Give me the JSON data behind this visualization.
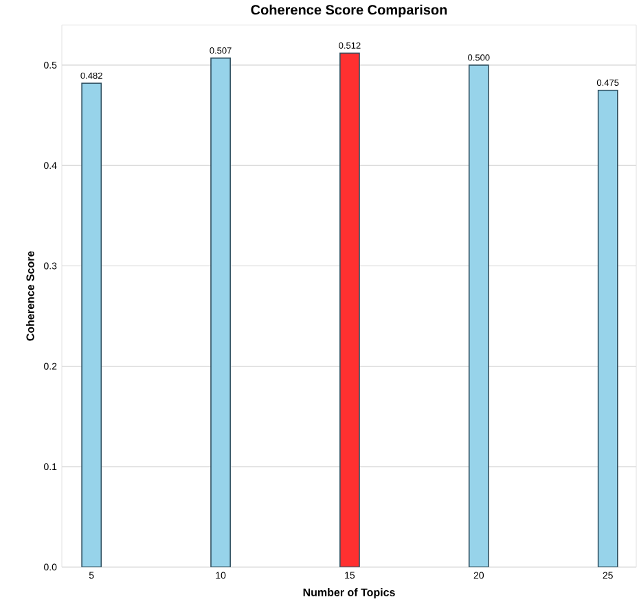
{
  "chart_data": {
    "type": "bar",
    "title": "Coherence Score Comparison",
    "xlabel": "Number of Topics",
    "ylabel": "Coherence Score",
    "x": [
      5,
      10,
      15,
      20,
      25
    ],
    "values": [
      0.482,
      0.507,
      0.512,
      0.5,
      0.475
    ],
    "value_labels": [
      "0.482",
      "0.507",
      "0.512",
      "0.500",
      "0.475"
    ],
    "colors": [
      "#97d3ea",
      "#97d3ea",
      "#ff3030",
      "#97d3ea",
      "#97d3ea"
    ],
    "xlim": [
      3.85,
      26.1
    ],
    "ylim": [
      0,
      0.54
    ],
    "xticks": [
      5,
      10,
      15,
      20,
      25
    ],
    "yticks": [
      {
        "value": 0,
        "label": "0.0"
      },
      {
        "value": 0.1,
        "label": "0.1"
      },
      {
        "value": 0.2,
        "label": "0.2"
      },
      {
        "value": 0.3,
        "label": "0.3"
      },
      {
        "value": 0.4,
        "label": "0.4"
      },
      {
        "value": 0.5,
        "label": "0.5"
      }
    ],
    "grid": "y"
  }
}
